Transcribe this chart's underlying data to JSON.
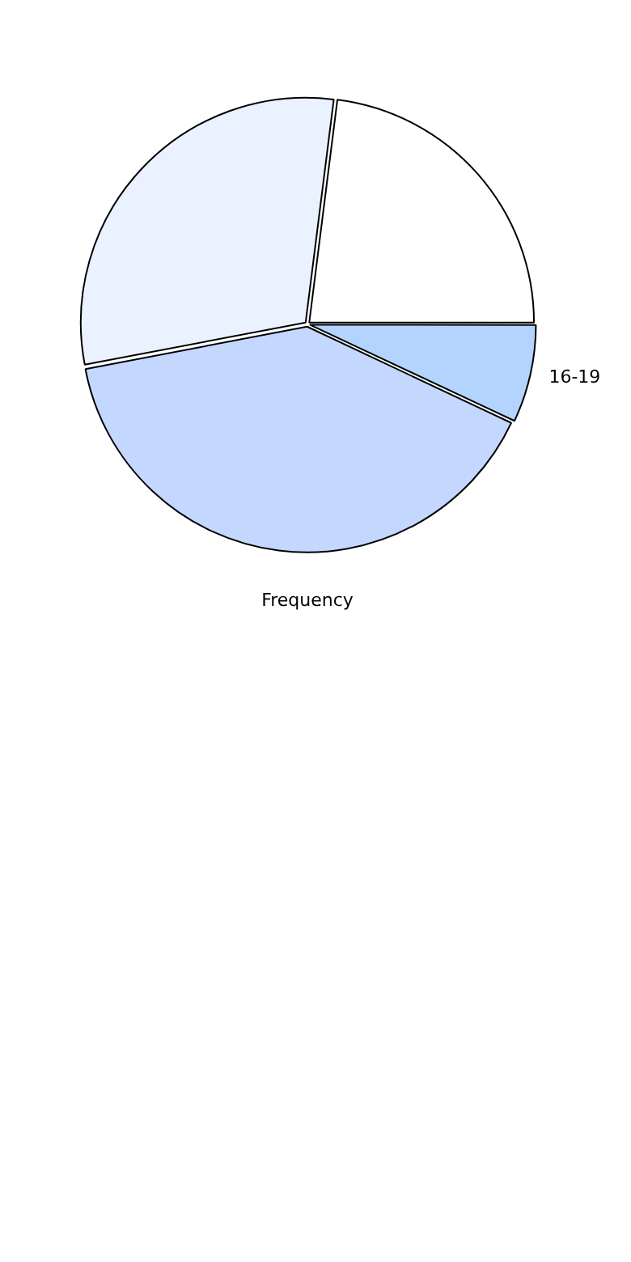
{
  "chart_data": {
    "type": "pie",
    "xlabel": "Frequency",
    "categories": [
      "16-19",
      null,
      null,
      null
    ],
    "values": [
      7,
      40,
      30,
      23
    ],
    "colors": [
      "#b3d4ff",
      "#c4d8ff",
      "#eaf1ff",
      "#ffffff"
    ],
    "legend": false
  }
}
